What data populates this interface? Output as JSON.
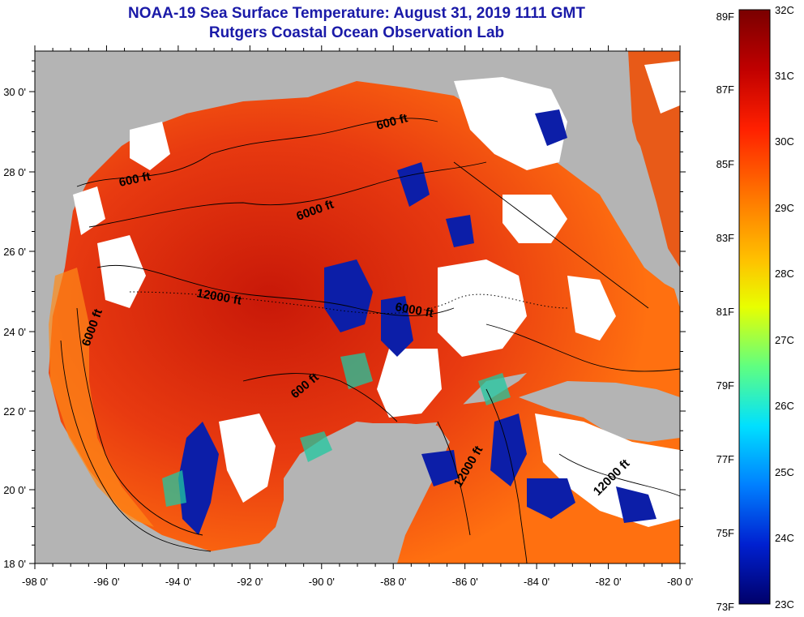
{
  "header": {
    "title": "NOAA-19 Sea Surface Temperature:  August 31, 2019 1111 GMT",
    "subtitle": "Rutgers Coastal Ocean Observation Lab"
  },
  "map": {
    "lon_ticks": [
      "-98 0'",
      "-96 0'",
      "-94 0'",
      "-92 0'",
      "-90 0'",
      "-88 0'",
      "-86 0'",
      "-84 0'",
      "-82 0'",
      "-80 0'"
    ],
    "lat_ticks": [
      "30 0'",
      "28 0'",
      "26 0'",
      "24 0'",
      "22 0'",
      "20 0'",
      "18 0'"
    ],
    "contour_labels": [
      {
        "text": "600 ft",
        "rotate": -12
      },
      {
        "text": "600 ft",
        "rotate": -15
      },
      {
        "text": "6000 ft",
        "rotate": -20
      },
      {
        "text": "12000 ft",
        "rotate": 10
      },
      {
        "text": "6000 ft",
        "rotate": -70
      },
      {
        "text": "6000 ft",
        "rotate": 10
      },
      {
        "text": "600 ft",
        "rotate": -40
      },
      {
        "text": "12000 ft",
        "rotate": -60
      },
      {
        "text": "12000 ft",
        "rotate": -45
      }
    ],
    "colors": {
      "land": "#b4b4b4",
      "cloud": "#ffffff",
      "warm": "#e03010",
      "cool": "#0c1ea8"
    }
  },
  "colorbar": {
    "left_labels": [
      "89F",
      "87F",
      "85F",
      "83F",
      "81F",
      "79F",
      "77F",
      "75F",
      "73F"
    ],
    "right_labels": [
      "32C",
      "31C",
      "30C",
      "29C",
      "28C",
      "27C",
      "26C",
      "25C",
      "24C",
      "23C"
    ],
    "stops": [
      "#7a0000",
      "#c00000",
      "#ff2000",
      "#ff7a00",
      "#ffc000",
      "#e8ff00",
      "#60ff80",
      "#00e0ff",
      "#0080ff",
      "#0020d0",
      "#00006a"
    ]
  }
}
